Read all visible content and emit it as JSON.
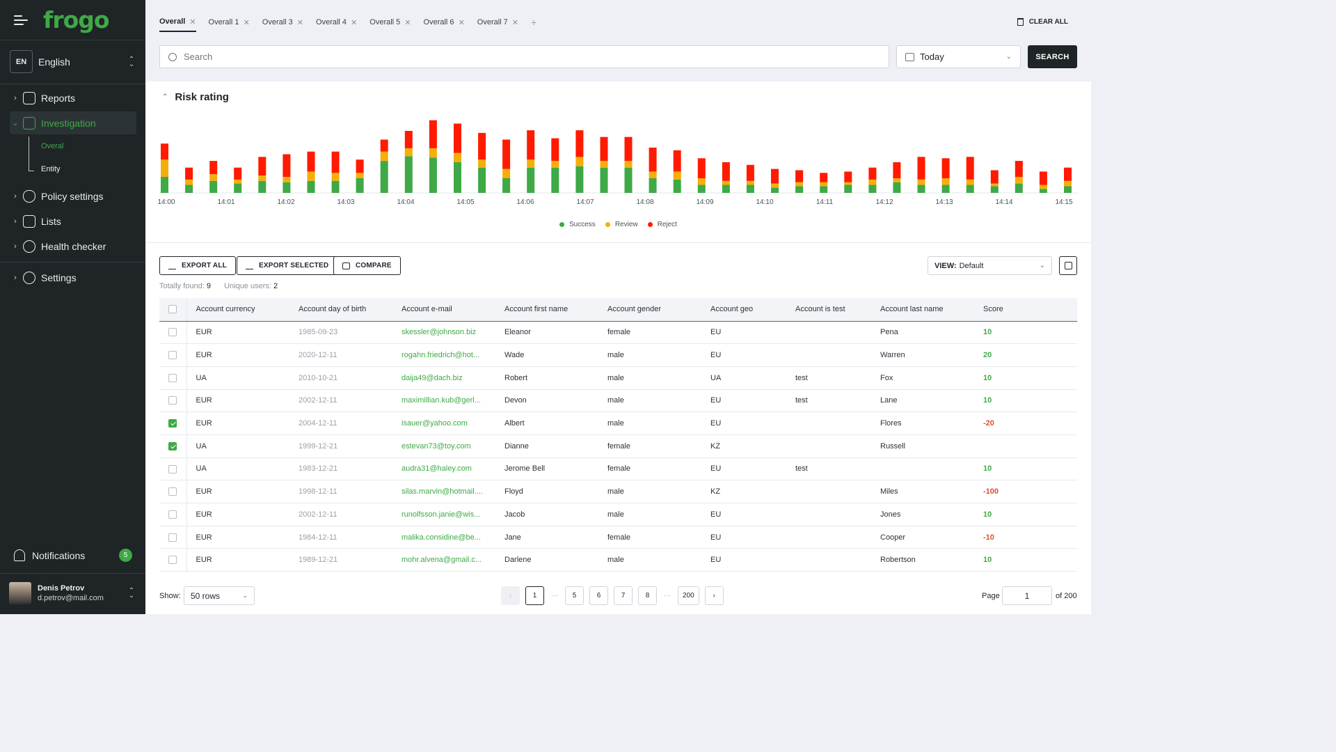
{
  "brand": {
    "logo_text": "frogo",
    "accent": "#3ea946"
  },
  "language": {
    "code": "EN",
    "name": "English"
  },
  "nav": {
    "reports": "Reports",
    "investigation": "Investigation",
    "sub_overal": "Overal",
    "sub_entity": "Entity",
    "policy": "Policy settings",
    "lists": "Lists",
    "health": "Health checker",
    "settings": "Settings"
  },
  "notifications": {
    "label": "Notifications",
    "count": "5"
  },
  "user": {
    "name": "Denis Petrov",
    "email": "d.petrov@mail.com"
  },
  "tabs": [
    "Overall",
    "Overall 1",
    "Overall 3",
    "Overall 4",
    "Overall 5",
    "Overall 6",
    "Overall 7"
  ],
  "tab_add": "+",
  "clear_all": "CLEAR ALL",
  "search": {
    "placeholder": "Search",
    "date_value": "Today",
    "button": "SEARCH"
  },
  "chart_title": "Risk rating",
  "chart_data": {
    "type": "bar",
    "stacked": true,
    "x_ticks": [
      "14:00",
      "14:01",
      "14:02",
      "14:03",
      "14:04",
      "14:05",
      "14:06",
      "14:07",
      "14:08",
      "14:09",
      "14:10",
      "14:11",
      "14:12",
      "14:13",
      "14:14",
      "14:15"
    ],
    "series": [
      {
        "name": "Success",
        "color": "#3ea946",
        "values": [
          24,
          12,
          18,
          14,
          18,
          16,
          18,
          18,
          22,
          48,
          55,
          53,
          46,
          38,
          22,
          38,
          38,
          40,
          38,
          38,
          22,
          20,
          12,
          12,
          12,
          8,
          10,
          10,
          12,
          12,
          16,
          12,
          12,
          12,
          10,
          14,
          6,
          10
        ]
      },
      {
        "name": "Review",
        "color": "#f5ae0a",
        "values": [
          26,
          8,
          10,
          6,
          8,
          8,
          14,
          12,
          8,
          14,
          12,
          14,
          14,
          12,
          14,
          12,
          10,
          14,
          10,
          10,
          10,
          12,
          10,
          6,
          6,
          6,
          6,
          6,
          4,
          8,
          6,
          8,
          10,
          8,
          4,
          10,
          6,
          8
        ]
      },
      {
        "name": "Reject",
        "color": "#ff1a00",
        "values": [
          24,
          18,
          20,
          18,
          28,
          34,
          30,
          32,
          20,
          18,
          26,
          42,
          44,
          40,
          44,
          44,
          34,
          40,
          36,
          36,
          36,
          32,
          30,
          28,
          24,
          22,
          18,
          14,
          16,
          18,
          24,
          34,
          30,
          34,
          20,
          24,
          20,
          20
        ]
      }
    ],
    "ylim": [
      0,
      115
    ],
    "legend_position": "bottom-center",
    "grid": false
  },
  "actions": {
    "export_all": "EXPORT ALL",
    "export_selected": "EXPORT SELECTED",
    "compare": "COMPARE"
  },
  "view": {
    "label": "VIEW:",
    "value": "Default"
  },
  "summary": {
    "found_label": "Totally found:",
    "found_value": "9",
    "unique_label": "Unique users:",
    "unique_value": "2"
  },
  "table": {
    "columns": [
      "Account currency",
      "Account day of birth",
      "Account e-mail",
      "Account first name",
      "Account gender",
      "Account geo",
      "Account is test",
      "Account last name",
      "Score"
    ],
    "rows": [
      {
        "checked": false,
        "cells": [
          "EUR",
          "1985-09-23",
          "skessler@johnson.biz",
          "Eleanor",
          "female",
          "EU",
          "",
          "Pena",
          "10"
        ]
      },
      {
        "checked": false,
        "cells": [
          "EUR",
          "2020-12-11",
          "rogahn.friedrich@hot...",
          "Wade",
          "male",
          "EU",
          "",
          "Warren",
          "20"
        ]
      },
      {
        "checked": false,
        "cells": [
          "UA",
          "2010-10-21",
          "daija49@dach.biz",
          "Robert",
          "male",
          "UA",
          "test",
          "Fox",
          "10"
        ]
      },
      {
        "checked": false,
        "cells": [
          "EUR",
          "2002-12-11",
          "maximillian.kub@gerl...",
          "Devon",
          "male",
          "EU",
          "test",
          "Lane",
          "10"
        ]
      },
      {
        "checked": true,
        "cells": [
          "EUR",
          "2004-12-11",
          "isauer@yahoo.com",
          "Albert",
          "male",
          "EU",
          "",
          "Flores",
          "-20"
        ]
      },
      {
        "checked": true,
        "cells": [
          "UA",
          "1999-12-21",
          "estevan73@toy.com",
          "Dianne",
          "female",
          "KZ",
          "",
          "Russell",
          ""
        ]
      },
      {
        "checked": false,
        "cells": [
          "UA",
          "1983-12-21",
          "audra31@haley.com",
          "Jerome Bell",
          "female",
          "EU",
          "test",
          "",
          "10"
        ]
      },
      {
        "checked": false,
        "cells": [
          "EUR",
          "1998-12-11",
          "silas.marvin@hotmail....",
          "Floyd",
          "male",
          "KZ",
          "",
          "Miles",
          "-100"
        ]
      },
      {
        "checked": false,
        "cells": [
          "EUR",
          "2002-12-11",
          "runolfsson.janie@wis...",
          "Jacob",
          "male",
          "EU",
          "",
          "Jones",
          "10"
        ]
      },
      {
        "checked": false,
        "cells": [
          "EUR",
          "1984-12-11",
          "malika.considine@be...",
          "Jane",
          "female",
          "EU",
          "",
          "Cooper",
          "-10"
        ]
      },
      {
        "checked": false,
        "cells": [
          "EUR",
          "1989-12-21",
          "mohr.alvena@gmail.c...",
          "Darlene",
          "male",
          "EU",
          "",
          "Robertson",
          "10"
        ]
      }
    ]
  },
  "footer": {
    "show_label": "Show:",
    "rows_value": "50 rows",
    "prev": "‹",
    "next": "›",
    "pages": [
      "1",
      "5",
      "6",
      "7",
      "8",
      "200"
    ],
    "dots": "···",
    "page_label": "Page",
    "page_value": "1",
    "of_label": "of 200"
  }
}
